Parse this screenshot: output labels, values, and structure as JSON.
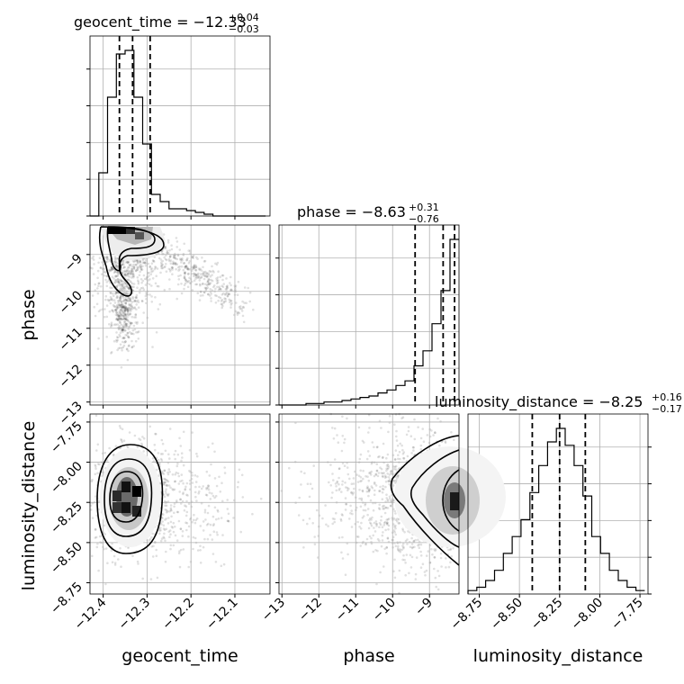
{
  "chart_data": {
    "type": "corner",
    "parameters": [
      "geocent_time",
      "phase",
      "luminosity_distance"
    ],
    "ranges": {
      "geocent_time": [
        -12.43,
        -12.02
      ],
      "phase": [
        -13.08,
        -8.2
      ],
      "luminosity_distance": [
        -8.82,
        -7.7
      ]
    },
    "ticks": {
      "geocent_time": [
        -12.4,
        -12.3,
        -12.2,
        -12.1
      ],
      "phase": [
        -13,
        -12,
        -11,
        -10,
        -9
      ],
      "luminosity_distance": [
        -8.75,
        -8.5,
        -8.25,
        -8.0,
        -7.75
      ]
    },
    "tick_labels": {
      "geocent_time": [
        "−12.4",
        "−12.3",
        "−12.2",
        "−12.1"
      ],
      "phase": [
        "−13",
        "−12",
        "−11",
        "−10",
        "−9"
      ],
      "luminosity_distance": [
        "−8.75",
        "−8.50",
        "−8.25",
        "−8.00",
        "−7.75"
      ]
    },
    "axis_labels": {
      "geocent_time": "geocent_time",
      "phase": "phase",
      "luminosity_distance": "luminosity_distance"
    },
    "titles": [
      {
        "param": "geocent_time",
        "text": "geocent_time = −12.33",
        "plus": "+0.04",
        "minus": "−0.03",
        "median": -12.333,
        "q_low": -12.363,
        "q_high": -12.293
      },
      {
        "param": "phase",
        "text": "phase = −8.63",
        "plus": "+0.31",
        "minus": "−0.76",
        "median": -8.63,
        "q_low": -9.39,
        "q_high": -8.32
      },
      {
        "param": "luminosity_distance",
        "text": "luminosity_distance = −8.25",
        "plus": "+0.16",
        "minus": "−0.17",
        "median": -8.25,
        "q_low": -8.42,
        "q_high": -8.09
      }
    ],
    "histograms": {
      "geocent_time": {
        "edges": [
          -12.43,
          -12.41,
          -12.39,
          -12.37,
          -12.35,
          -12.33,
          -12.31,
          -12.29,
          -12.27,
          -12.25,
          -12.23,
          -12.21,
          -12.19,
          -12.17,
          -12.15,
          -12.13,
          -12.11,
          -12.09,
          -12.07,
          -12.05,
          -12.03
        ],
        "counts": [
          0,
          12,
          33,
          45,
          46,
          33,
          20,
          6,
          4,
          2,
          2,
          1.5,
          1,
          0.5,
          0,
          0,
          0,
          0,
          0,
          0
        ]
      },
      "phase": {
        "edges": [
          -13.08,
          -12.836,
          -12.592,
          -12.348,
          -12.104,
          -11.86,
          -11.616,
          -11.372,
          -11.128,
          -10.884,
          -10.64,
          -10.396,
          -10.152,
          -9.908,
          -9.664,
          -9.42,
          -9.176,
          -8.932,
          -8.688,
          -8.444,
          -8.2
        ],
        "counts": [
          0,
          0,
          0,
          0.5,
          0.5,
          1,
          1,
          1.5,
          2,
          2.5,
          3,
          4,
          5,
          6.5,
          8,
          13,
          18,
          27,
          38,
          55
        ]
      },
      "luminosity_distance": {
        "edges": [
          -8.82,
          -8.765,
          -8.71,
          -8.655,
          -8.6,
          -8.545,
          -8.49,
          -8.435,
          -8.38,
          -8.325,
          -8.27,
          -8.215,
          -8.16,
          -8.105,
          -8.05,
          -7.995,
          -7.94,
          -7.885,
          -7.83,
          -7.775,
          -7.72
        ],
        "counts": [
          1,
          2,
          4,
          7,
          12,
          17,
          22,
          30,
          38,
          45,
          49,
          44,
          38,
          29,
          17,
          12,
          7,
          4,
          2,
          1
        ]
      }
    },
    "grid": true
  }
}
